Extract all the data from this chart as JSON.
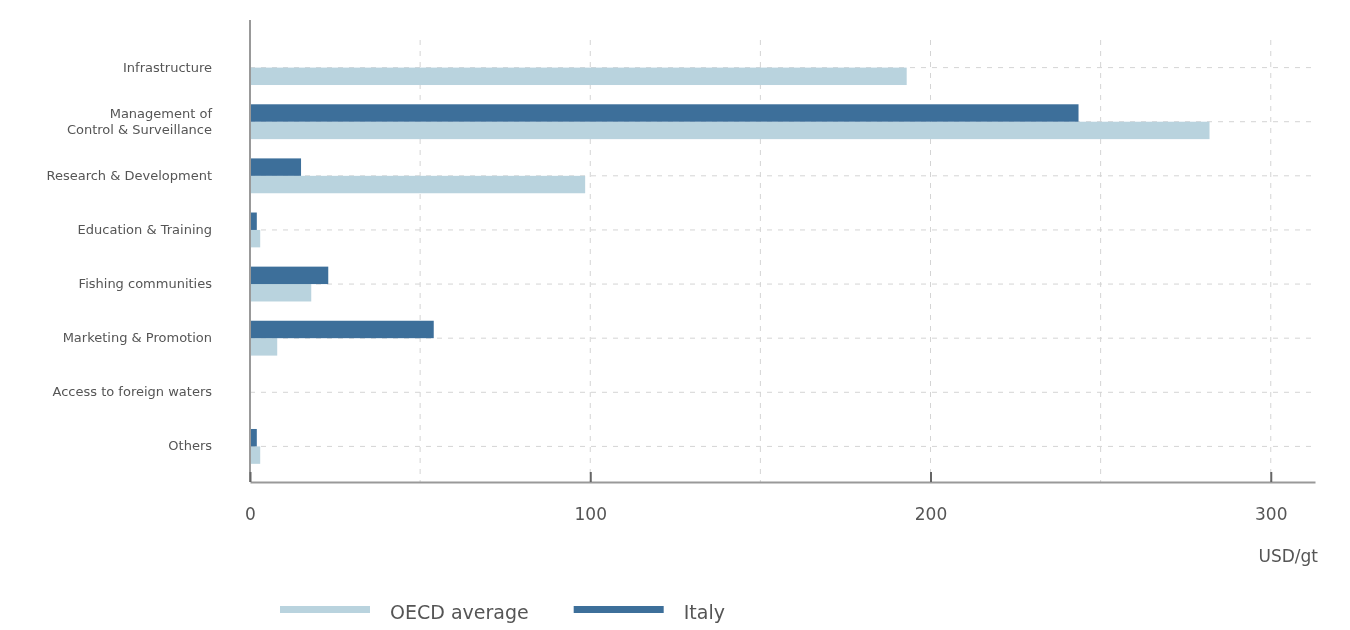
{
  "chart_data": {
    "type": "bar",
    "orientation": "horizontal",
    "xlabel": "USD/gt",
    "categories": [
      "Infrastructure",
      "Management of\nControl & Surveillance",
      "Research & Development",
      "Education & Training",
      "Fishing communities",
      "Marketing & Promotion",
      "Access to foreign waters",
      "Others"
    ],
    "series": [
      {
        "name": "OECD average",
        "color": "#b9d3de",
        "values": [
          193,
          282,
          98.5,
          3,
          18,
          8,
          0,
          3
        ]
      },
      {
        "name": "Italy",
        "color": "#3d6f9a",
        "values": [
          0,
          243.5,
          15,
          2,
          23,
          54,
          0,
          2
        ]
      }
    ],
    "xlim": [
      0,
      313
    ],
    "xticks": [
      0,
      {
        "value": 50,
        "label": null
      },
      100,
      {
        "value": 150,
        "label": null
      },
      200,
      {
        "value": 250,
        "label": null
      },
      300
    ],
    "grid": true,
    "legend": "bottom"
  }
}
